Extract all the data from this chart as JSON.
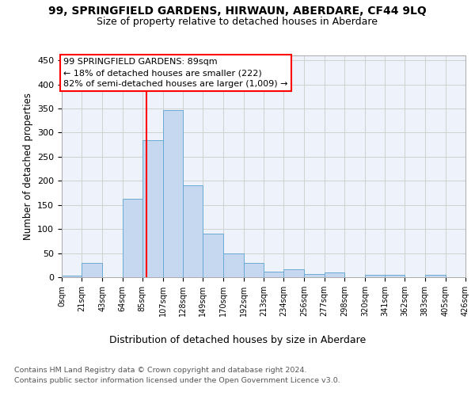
{
  "title": "99, SPRINGFIELD GARDENS, HIRWAUN, ABERDARE, CF44 9LQ",
  "subtitle": "Size of property relative to detached houses in Aberdare",
  "xlabel": "Distribution of detached houses by size in Aberdare",
  "ylabel": "Number of detached properties",
  "footnote1": "Contains HM Land Registry data © Crown copyright and database right 2024.",
  "footnote2": "Contains public sector information licensed under the Open Government Licence v3.0.",
  "annotation_line1": "99 SPRINGFIELD GARDENS: 89sqm",
  "annotation_line2": "← 18% of detached houses are smaller (222)",
  "annotation_line3": "82% of semi-detached houses are larger (1,009) →",
  "property_size": 89,
  "bar_color": "#c5d8f0",
  "bar_edge_color": "#6aaad4",
  "marker_color": "red",
  "background_color": "#eef2fb",
  "bin_edges": [
    0,
    21,
    43,
    64,
    85,
    107,
    128,
    149,
    170,
    192,
    213,
    234,
    256,
    277,
    298,
    320,
    341,
    362,
    383,
    405,
    426
  ],
  "bar_heights": [
    3,
    30,
    0,
    162,
    285,
    346,
    191,
    91,
    50,
    30,
    11,
    16,
    7,
    10,
    0,
    5,
    5,
    0,
    5,
    0
  ],
  "ylim": [
    0,
    460
  ],
  "yticks": [
    0,
    50,
    100,
    150,
    200,
    250,
    300,
    350,
    400,
    450
  ],
  "grid_color": "#d0d0d0",
  "title_fontsize": 10,
  "subtitle_fontsize": 9,
  "ylabel_fontsize": 8.5,
  "xlabel_fontsize": 9,
  "tick_fontsize": 7,
  "ytick_fontsize": 8,
  "annot_fontsize": 8,
  "footnote_fontsize": 6.8
}
